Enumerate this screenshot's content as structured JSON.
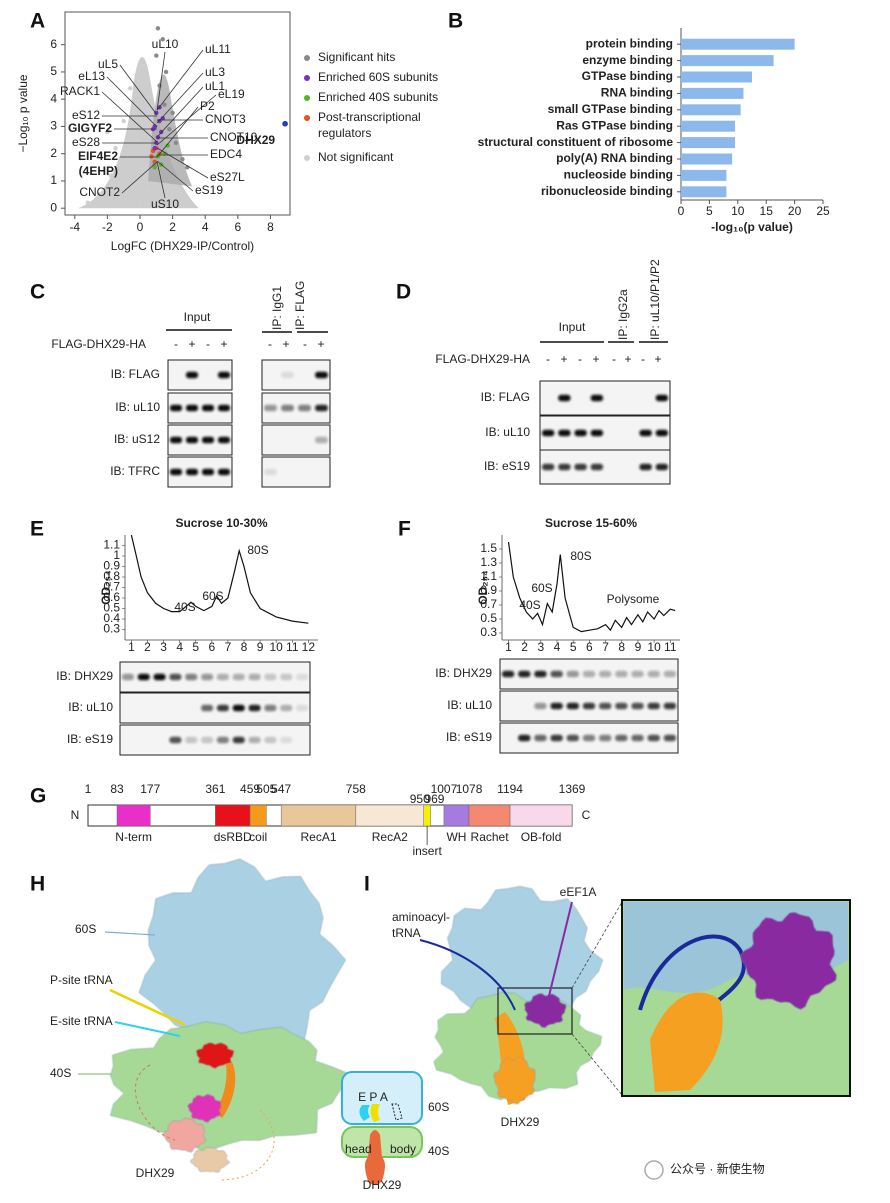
{
  "chart_data": [
    {
      "type": "scatter",
      "xlabel": "LogFC (DHX29-IP/Control)",
      "ylabel": "−Log₁₀ p value",
      "xlim": [
        -4.6,
        9.2
      ],
      "xticks": [
        -4,
        -2,
        0,
        2,
        4,
        6,
        8
      ],
      "ylim": [
        -0.25,
        7.2
      ],
      "yticks": [
        0,
        1,
        2,
        3,
        4,
        5,
        6
      ],
      "series": [
        {
          "name": "Significant hits",
          "color": "#8a8a8a",
          "x": [
            1.2,
            1.5,
            1.8,
            2.2,
            1.0,
            1.4,
            2.6,
            1.6,
            2.0,
            1.1,
            0.9,
            2.9
          ],
          "y": [
            4.5,
            3.8,
            2.9,
            2.4,
            5.6,
            6.2,
            1.8,
            5.0,
            3.5,
            6.6,
            1.6,
            1.5
          ]
        },
        {
          "name": "Enriched 60S subunits",
          "color": "#7a2fc0",
          "x": [
            1.0,
            1.2,
            0.9,
            1.3,
            1.1,
            0.8,
            1.4,
            1.0,
            1.2,
            0.9
          ],
          "y": [
            3.5,
            3.2,
            3.0,
            2.8,
            2.6,
            2.9,
            3.3,
            2.4,
            3.7,
            2.2
          ]
        },
        {
          "name": "Enriched 40S subunits",
          "color": "#4fb81f",
          "x": [
            1.5,
            1.1,
            1.7,
            0.9,
            1.3
          ],
          "y": [
            2.0,
            1.9,
            2.3,
            1.5,
            1.6
          ]
        },
        {
          "name": "Post-transcriptional regulators",
          "color": "#e8501c",
          "x": [
            0.8,
            1.0,
            0.7,
            1.2,
            0.9
          ],
          "y": [
            2.1,
            2.2,
            1.9,
            2.0,
            1.7
          ]
        },
        {
          "name": "Not significant",
          "color": "#cfcfcf",
          "x": [
            -2.5,
            -1.8,
            -1.2,
            -0.8,
            -0.5,
            -0.2,
            0,
            0.2,
            0.4,
            0.5,
            -3.2,
            -1.5,
            0.3,
            -0.3,
            0.1,
            -0.6,
            1.8,
            2.5,
            -2.0,
            -1.0
          ],
          "y": [
            0.5,
            1.2,
            0.3,
            1.8,
            0.8,
            2.5,
            0.2,
            1.5,
            3.0,
            0.6,
            0.2,
            2.2,
            4.0,
            3.5,
            5.2,
            4.4,
            0.4,
            0.2,
            2.8,
            3.2
          ]
        }
      ],
      "highlight": {
        "label": "DHX29",
        "x": 8.9,
        "y": 3.1,
        "color": "#1f3cc4"
      },
      "annotations": [
        "uL10",
        "uL11",
        "uL5",
        "uL3",
        "eL13",
        "uL1",
        "eL19",
        "RACK1",
        "P2",
        "CNOT3",
        "eS12",
        "GIGYF2",
        "CNOT10",
        "eS28",
        "EIF4E2",
        "(4EHP)",
        "EDC4",
        "eS27L",
        "eS19",
        "CNOT2",
        "uS10"
      ]
    },
    {
      "type": "hbar",
      "xlabel": "-log₁₀(p value)",
      "categories": [
        "protein binding",
        "enzyme binding",
        "GTPase binding",
        "RNA binding",
        "small GTPase binding",
        "Ras GTPase binding",
        "structural constituent of ribosome",
        "poly(A) RNA binding",
        "nucleoside binding",
        "ribonucleoside binding"
      ],
      "values": [
        20,
        16.3,
        12.5,
        11,
        10.5,
        9.5,
        9.5,
        9,
        8,
        8
      ],
      "color": "#8db8ec",
      "xlim": [
        0,
        25
      ],
      "xticks": [
        0,
        5,
        10,
        15,
        20,
        25
      ]
    },
    {
      "type": "line",
      "title": "Sucrose 10-30%",
      "ylabel": "OD₂₅₄",
      "xlim": [
        0.6,
        12.6
      ],
      "xticks": [
        1,
        2,
        3,
        4,
        5,
        6,
        7,
        8,
        9,
        10,
        11,
        12
      ],
      "ylim": [
        0.2,
        1.2
      ],
      "yticks": [
        0.3,
        0.4,
        0.5,
        0.6,
        0.7,
        0.8,
        0.9,
        1.0,
        1.1
      ],
      "x": [
        1.0,
        1.3,
        1.6,
        2.0,
        2.5,
        3,
        3.5,
        4,
        4.4,
        4.7,
        5.0,
        5.5,
        6.0,
        6.3,
        6.6,
        7.0,
        7.4,
        7.7,
        8.0,
        8.4,
        9,
        10,
        11,
        12
      ],
      "values": [
        1.2,
        1.0,
        0.8,
        0.65,
        0.55,
        0.5,
        0.47,
        0.47,
        0.52,
        0.56,
        0.52,
        0.48,
        0.52,
        0.62,
        0.55,
        0.6,
        0.85,
        1.05,
        0.9,
        0.65,
        0.5,
        0.42,
        0.38,
        0.36
      ],
      "color": "#111111",
      "annotations": [
        "40S",
        "60S",
        "80S"
      ]
    },
    {
      "type": "line",
      "title": "Sucrose 15-60%",
      "ylabel": "OD₂₅₄",
      "xlim": [
        0.6,
        11.6
      ],
      "xticks": [
        1,
        2,
        3,
        4,
        5,
        6,
        7,
        8,
        9,
        10,
        11
      ],
      "ylim": [
        0.2,
        1.7
      ],
      "yticks": [
        0.3,
        0.5,
        0.7,
        0.9,
        1.1,
        1.3,
        1.5
      ],
      "x": [
        1.0,
        1.3,
        1.7,
        2.1,
        2.5,
        2.8,
        3.1,
        3.4,
        3.7,
        4.0,
        4.2,
        4.5,
        5.0,
        5.5,
        6.0,
        6.5,
        7.0,
        7.3,
        7.6,
        8.0,
        8.3,
        8.6,
        9.0,
        9.3,
        9.6,
        10.0,
        10.3,
        10.6,
        11.0,
        11.3
      ],
      "values": [
        1.6,
        1.1,
        0.8,
        0.6,
        0.5,
        0.58,
        0.42,
        0.72,
        0.6,
        1.0,
        1.42,
        0.8,
        0.38,
        0.32,
        0.34,
        0.36,
        0.42,
        0.34,
        0.48,
        0.38,
        0.52,
        0.42,
        0.56,
        0.46,
        0.6,
        0.5,
        0.62,
        0.55,
        0.64,
        0.62
      ],
      "color": "#111111",
      "annotations": [
        "40S",
        "60S",
        "80S",
        "Polysome"
      ]
    }
  ],
  "figure": {
    "panel_labels": [
      "A",
      "B",
      "C",
      "D",
      "E",
      "F",
      "G",
      "H",
      "I"
    ],
    "panel_c": {
      "input": "Input",
      "ip": [
        "IP: IgG1",
        "IP: FLAG"
      ],
      "construct": "FLAG-DHX29-HA",
      "signs": [
        "-",
        "+",
        "-",
        "+",
        "-",
        "+",
        "-",
        "+"
      ],
      "rows": [
        "IB: FLAG",
        "IB: uL10",
        "IB: uS12",
        "IB: TFRC"
      ]
    },
    "panel_d": {
      "input": "Input",
      "ip": [
        "IP: IgG2a",
        "IP: uL10/P1/P2"
      ],
      "construct": "FLAG-DHX29-HA",
      "signs": [
        "-",
        "+",
        "-",
        "+",
        "-",
        "+",
        "-",
        "+"
      ],
      "rows": [
        "IB: FLAG",
        "IB: uL10",
        "IB: eS19"
      ]
    },
    "panel_e": {
      "rows": [
        "IB: DHX29",
        "IB: uL10",
        "IB: eS19"
      ]
    },
    "panel_f": {
      "rows": [
        "IB: DHX29",
        "IB: uL10",
        "IB: eS19"
      ]
    },
    "panel_g": {
      "n": "N",
      "c": "C",
      "residues": [
        1,
        83,
        177,
        361,
        459,
        505,
        547,
        758,
        950,
        969,
        1007,
        1078,
        1194,
        1369
      ],
      "domains": [
        {
          "label": "N-term",
          "start": 83,
          "end": 177,
          "color": "#e830c8"
        },
        {
          "label": "dsRBD",
          "start": 361,
          "end": 459,
          "color": "#e8101a"
        },
        {
          "label": "coil",
          "start": 459,
          "end": 505,
          "color": "#f59a1a"
        },
        {
          "label": "RecA1",
          "start": 547,
          "end": 758,
          "color": "#e9c79a"
        },
        {
          "label": "RecA2",
          "start": 758,
          "end": 950,
          "color": "#f7e8d6"
        },
        {
          "label": "insert",
          "start": 950,
          "end": 969,
          "color": "#f5f000"
        },
        {
          "label": "WH",
          "start": 1007,
          "end": 1078,
          "color": "#a57be0"
        },
        {
          "label": "Rachet",
          "start": 1078,
          "end": 1194,
          "color": "#f58870"
        },
        {
          "label": "OB-fold",
          "start": 1194,
          "end": 1369,
          "color": "#f8d8ea"
        }
      ]
    },
    "panel_h": {
      "labels": [
        "60S",
        "P-site tRNA",
        "E-site tRNA",
        "40S",
        "DHX29"
      ],
      "schematic": {
        "sites": "E P A",
        "large": "60S",
        "head": "head",
        "body": "body",
        "small": "40S",
        "helicase": "DHX29"
      }
    },
    "panel_i": {
      "eef1a": "eEF1A",
      "trna": [
        "aminoacyl-",
        "tRNA"
      ],
      "helicase": "DHX29"
    },
    "watermark": "公众号 · 新使生物"
  }
}
